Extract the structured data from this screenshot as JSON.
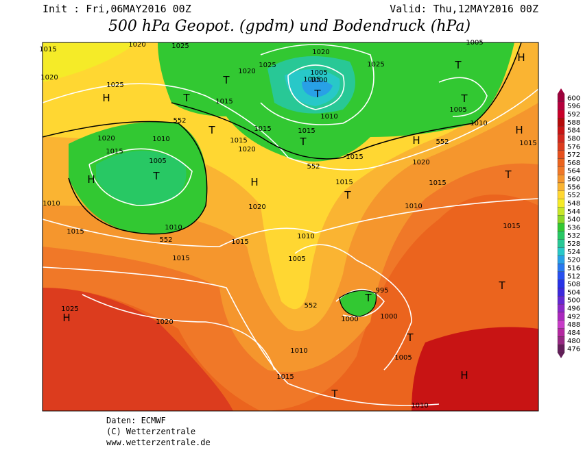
{
  "header": {
    "init": "Init : Fri,06MAY2016 00Z",
    "valid": "Valid: Thu,12MAY2016 00Z",
    "title": "500 hPa Geopot. (gpdm) und Bodendruck (hPa)"
  },
  "colorbar": {
    "ticks": [
      600,
      596,
      592,
      588,
      584,
      580,
      576,
      572,
      568,
      564,
      560,
      556,
      552,
      548,
      544,
      540,
      536,
      532,
      528,
      524,
      520,
      516,
      512,
      508,
      504,
      500,
      496,
      492,
      488,
      484,
      480,
      476
    ],
    "colors": [
      "#a0003c",
      "#b4003c",
      "#c80028",
      "#b40a0a",
      "#c81414",
      "#d2281e",
      "#dc3c1e",
      "#e6501e",
      "#eb641e",
      "#f07828",
      "#f5962d",
      "#fab432",
      "#ffd732",
      "#f5eb28",
      "#c8e628",
      "#8cd728",
      "#32c832",
      "#28c864",
      "#28c896",
      "#28c8c8",
      "#28a0e6",
      "#2878f0",
      "#2850f0",
      "#2832e6",
      "#3c28dc",
      "#6428d2",
      "#8c28c8",
      "#aa28be",
      "#c83cc8",
      "#b428a0",
      "#962882",
      "#641e5a"
    ]
  },
  "map": {
    "labels": [
      "1015",
      "1020",
      "1025",
      "1020",
      "1025",
      "1020",
      "1015",
      "1005",
      "1000",
      "1025",
      "1005",
      "1020",
      "1025",
      "H",
      "T",
      "T",
      "T",
      "T",
      "T",
      "1005",
      "H",
      "1015",
      "1010",
      "552",
      "T",
      "1015",
      "1015",
      "T",
      "1015",
      "1020",
      "1020",
      "1010",
      "1015",
      "1005",
      "T",
      "H",
      "H",
      "552",
      "1010",
      "H",
      "1015",
      "552",
      "1015",
      "1020",
      "H",
      "T",
      "1015",
      "1015",
      "T",
      "1010",
      "1020",
      "1010",
      "1010",
      "1015",
      "552",
      "1015",
      "1010",
      "1015",
      "1015",
      "1005",
      "T",
      "995",
      "552",
      "1000",
      "1000",
      "T",
      "1025",
      "H",
      "1020",
      "T",
      "1010",
      "1005",
      "H",
      "1015",
      "T",
      "1010"
    ]
  },
  "footer": {
    "source": "Daten: ECMWF",
    "copyright": "(C) Wetterzentrale",
    "url": "www.wetterzentrale.de"
  }
}
